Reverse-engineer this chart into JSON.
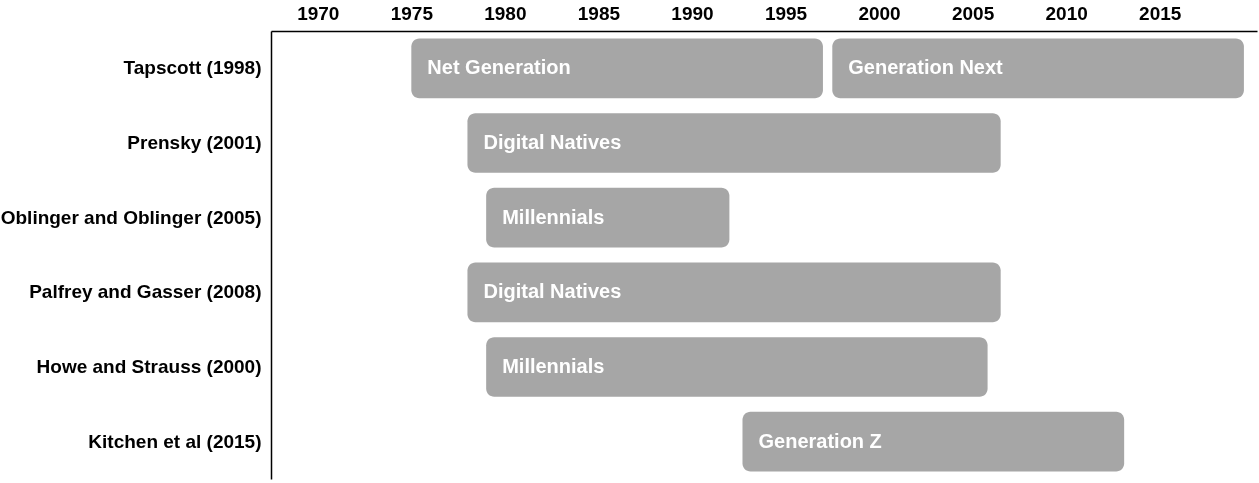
{
  "chart_data": {
    "type": "bar",
    "orientation": "horizontal",
    "categories": [
      "Tapscott (1998)",
      "Prensky (2001)",
      "Oblinger and Oblinger (2005)",
      "Palfrey and Gasser (2008)",
      "Howe and Strauss (2000)",
      "Kitchen et al (2015)"
    ],
    "series": [
      {
        "color": "#a6a6a6",
        "base": [
          1975,
          1978,
          1979,
          1978,
          1979,
          1992.7
        ],
        "values": [
          22,
          28.5,
          13,
          28.5,
          26.8,
          20.4
        ],
        "value_labels": [
          "Net Generation",
          "Digital Natives",
          "Millennials",
          "Digital Natives",
          "Millennials",
          "Generation Z"
        ]
      },
      {
        "color": "#a6a6a6",
        "base": [
          1997.5,
          null,
          null,
          null,
          null,
          null
        ],
        "values": [
          22,
          null,
          null,
          null,
          null,
          null
        ],
        "value_labels": [
          "Generation Next",
          null,
          null,
          null,
          null,
          null
        ]
      }
    ],
    "xlim": [
      1967.5,
      2020.2
    ],
    "xticks": [
      1970,
      1975,
      1980,
      1985,
      1990,
      1995,
      2000,
      2005,
      2010,
      2015
    ],
    "grid": false
  }
}
